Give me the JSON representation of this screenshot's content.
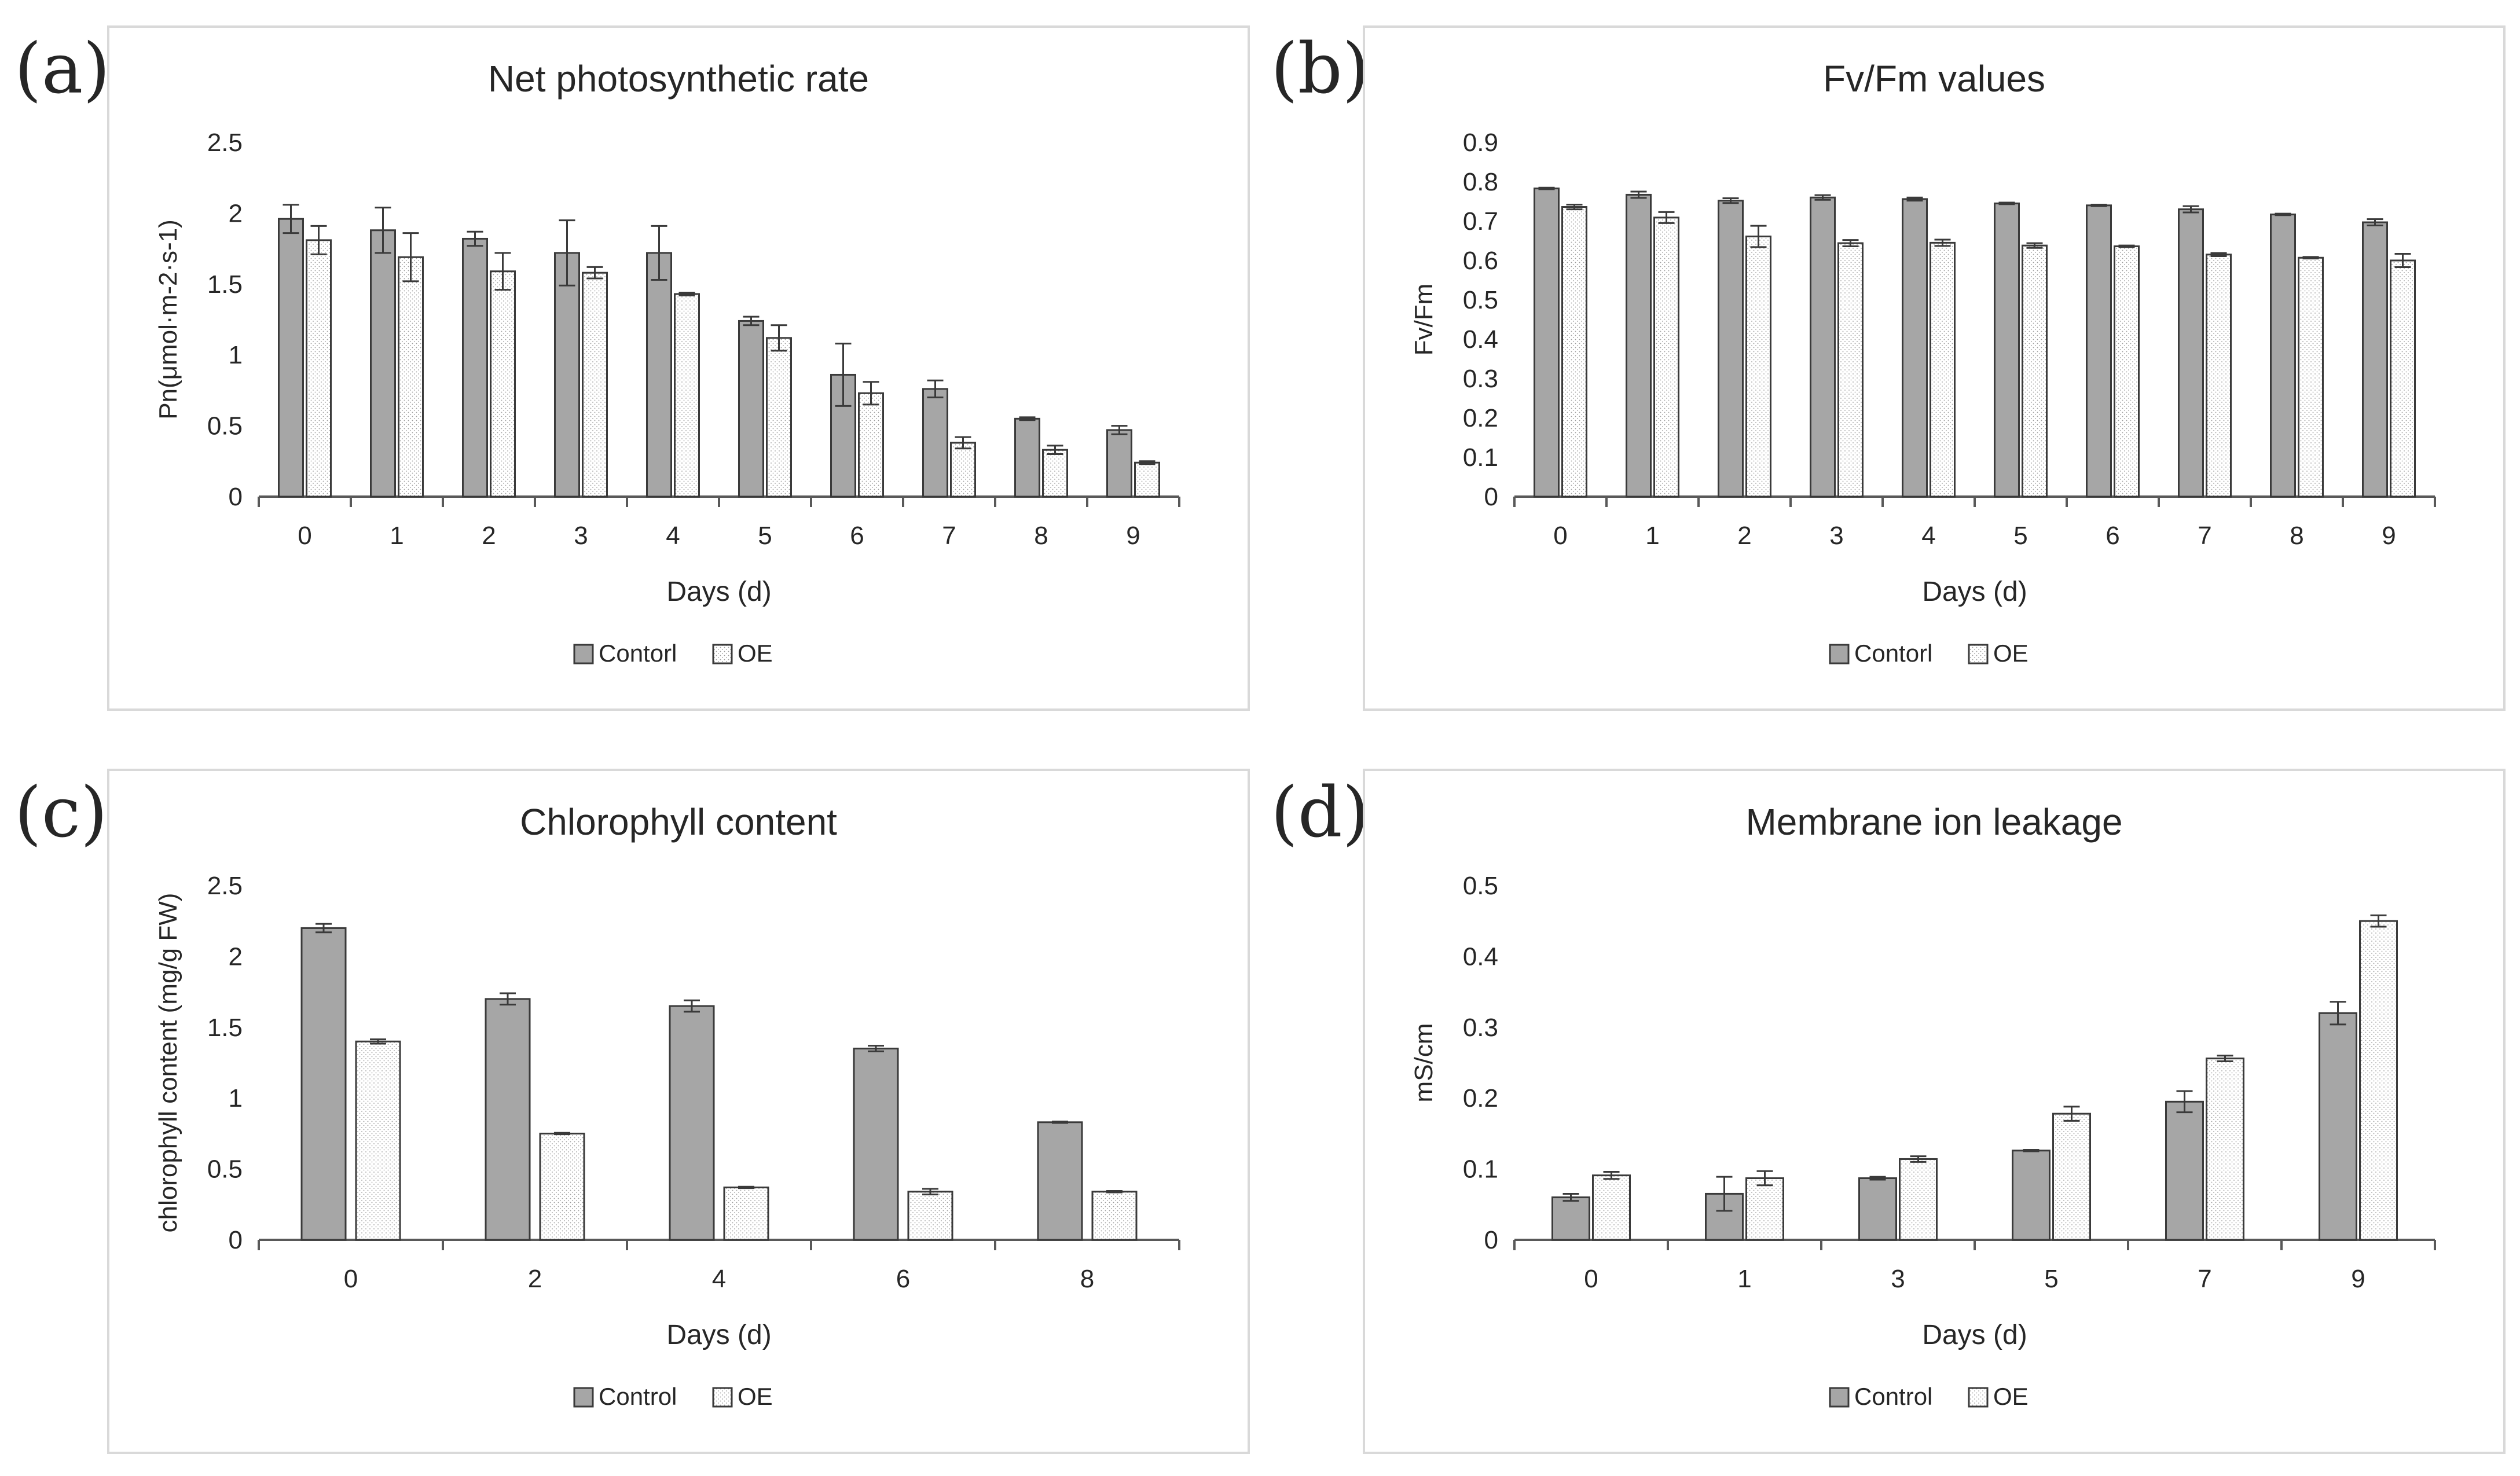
{
  "colors": {
    "control_fill": "#a6a6a6",
    "oe_fill": "#ffffff",
    "bar_stroke": "#3a3a3a",
    "axis": "#595959",
    "text": "#262626",
    "frame": "#d9d9d9"
  },
  "chart_data": [
    {
      "panel_label": "(a)",
      "type": "bar",
      "title": "Net photosynthetic rate",
      "xlabel": "Days (d)",
      "ylabel": "Pn(μmol·m-2·s-1)",
      "ylim": [
        0,
        2.5
      ],
      "yticks": [
        "0",
        "0.5",
        "1",
        "1.5",
        "2",
        "2.5"
      ],
      "categories": [
        "0",
        "1",
        "2",
        "3",
        "4",
        "5",
        "6",
        "7",
        "8",
        "9"
      ],
      "series": [
        {
          "name": "Contorl",
          "values": [
            1.96,
            1.88,
            1.82,
            1.72,
            1.72,
            1.24,
            0.86,
            0.76,
            0.55,
            0.47
          ],
          "errors": [
            0.1,
            0.16,
            0.05,
            0.23,
            0.19,
            0.03,
            0.22,
            0.06,
            0.01,
            0.03
          ]
        },
        {
          "name": "OE",
          "values": [
            1.81,
            1.69,
            1.59,
            1.58,
            1.43,
            1.12,
            0.73,
            0.38,
            0.33,
            0.24
          ],
          "errors": [
            0.1,
            0.17,
            0.13,
            0.04,
            0.01,
            0.09,
            0.08,
            0.04,
            0.03,
            0.01
          ]
        }
      ],
      "legend": [
        "Contorl",
        "OE"
      ],
      "legend_position": "bottom"
    },
    {
      "panel_label": "(b)",
      "type": "bar",
      "title": "Fv/Fm values",
      "xlabel": "Days (d)",
      "ylabel": "Fv/Fm",
      "ylim": [
        0,
        0.9
      ],
      "yticks": [
        "0",
        "0.1",
        "0.2",
        "0.3",
        "0.4",
        "0.5",
        "0.6",
        "0.7",
        "0.8",
        "0.9"
      ],
      "categories": [
        "0",
        "1",
        "2",
        "3",
        "4",
        "5",
        "6",
        "7",
        "8",
        "9"
      ],
      "series": [
        {
          "name": "Contorl",
          "values": [
            0.783,
            0.767,
            0.752,
            0.76,
            0.756,
            0.745,
            0.74,
            0.73,
            0.717,
            0.697
          ],
          "errors": [
            0.002,
            0.008,
            0.006,
            0.006,
            0.004,
            0.002,
            0.002,
            0.008,
            0.002,
            0.008
          ]
        },
        {
          "name": "OE",
          "values": [
            0.736,
            0.709,
            0.661,
            0.644,
            0.645,
            0.638,
            0.636,
            0.615,
            0.607,
            0.6
          ],
          "errors": [
            0.006,
            0.014,
            0.027,
            0.008,
            0.008,
            0.006,
            0.002,
            0.004,
            0.002,
            0.017
          ]
        }
      ],
      "legend": [
        "Contorl",
        "OE"
      ],
      "legend_position": "bottom"
    },
    {
      "panel_label": "(c)",
      "type": "bar",
      "title": "Chlorophyll content",
      "xlabel": "Days (d)",
      "ylabel": "chlorophyll content (mg/g FW)",
      "ylim": [
        0,
        2.5
      ],
      "yticks": [
        "0",
        "0.5",
        "1",
        "1.5",
        "2",
        "2.5"
      ],
      "categories": [
        "0",
        "2",
        "4",
        "6",
        "8"
      ],
      "series": [
        {
          "name": "Control",
          "values": [
            2.2,
            1.7,
            1.65,
            1.35,
            0.83
          ],
          "errors": [
            0.03,
            0.04,
            0.04,
            0.02,
            0.005
          ]
        },
        {
          "name": "OE",
          "values": [
            1.4,
            0.75,
            0.37,
            0.34,
            0.34
          ],
          "errors": [
            0.015,
            0.005,
            0.005,
            0.02,
            0.005
          ]
        }
      ],
      "legend": [
        "Control",
        "OE"
      ],
      "legend_position": "bottom"
    },
    {
      "panel_label": "(d)",
      "type": "bar",
      "title": "Membrane ion leakage",
      "xlabel": "Days (d)",
      "ylabel": "mS/cm",
      "ylim": [
        0,
        0.5
      ],
      "yticks": [
        "0",
        "0.1",
        "0.2",
        "0.3",
        "0.4",
        "0.5"
      ],
      "categories": [
        "0",
        "1",
        "3",
        "5",
        "7",
        "9"
      ],
      "series": [
        {
          "name": "Control",
          "values": [
            0.06,
            0.065,
            0.087,
            0.126,
            0.195,
            0.32
          ],
          "errors": [
            0.005,
            0.024,
            0.002,
            0.001,
            0.015,
            0.016
          ]
        },
        {
          "name": "OE",
          "values": [
            0.091,
            0.087,
            0.114,
            0.178,
            0.256,
            0.45
          ],
          "errors": [
            0.005,
            0.01,
            0.004,
            0.01,
            0.004,
            0.008
          ]
        }
      ],
      "legend": [
        "Control",
        "OE"
      ],
      "legend_position": "bottom"
    }
  ]
}
